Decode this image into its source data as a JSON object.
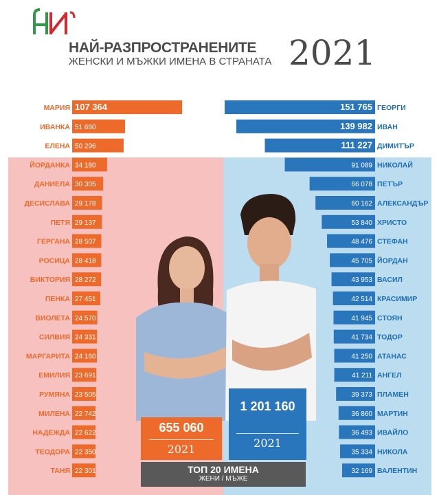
{
  "header": {
    "title_line1": "НАЙ-РАЗПРОСТРАНЕНИТЕ",
    "title_line2": "ЖЕНСКИ И МЪЖКИ ИМЕНА В СТРАНАТА",
    "year": "2021"
  },
  "totals": {
    "female": {
      "value": "655 060",
      "year": "2021"
    },
    "male": {
      "value": "1 201 160",
      "year": "2021"
    }
  },
  "footer": {
    "title": "ТОП 20 ИМЕНА",
    "subtitle": "ЖЕНИ / МЪЖЕ"
  },
  "colors": {
    "female_bar": "#ee6a2a",
    "male_bar": "#2a76bd",
    "female_bg": "#f6c1bf",
    "male_bg": "#bcdcef"
  },
  "chart_data": {
    "type": "bar",
    "female": [
      {
        "name": "МАРИЯ",
        "value": 107364,
        "label": "107 364"
      },
      {
        "name": "ИВАНКА",
        "value": 51680,
        "label": "51 680"
      },
      {
        "name": "ЕЛЕНА",
        "value": 50296,
        "label": "50 296"
      },
      {
        "name": "ЙОРДАНКА",
        "value": 34180,
        "label": "34 180"
      },
      {
        "name": "ДАНИЕЛА",
        "value": 30305,
        "label": "30 305"
      },
      {
        "name": "ДЕСИСЛАВА",
        "value": 29178,
        "label": "29 178"
      },
      {
        "name": "ПЕТЯ",
        "value": 29137,
        "label": "29 137"
      },
      {
        "name": "ГЕРГАНА",
        "value": 28507,
        "label": "28 507"
      },
      {
        "name": "РОСИЦА",
        "value": 28418,
        "label": "28 418"
      },
      {
        "name": "ВИКТОРИЯ",
        "value": 28272,
        "label": "28 272"
      },
      {
        "name": "ПЕНКА",
        "value": 27451,
        "label": "27 451"
      },
      {
        "name": "ВИОЛЕТА",
        "value": 24570,
        "label": "24 570"
      },
      {
        "name": "СИЛВИЯ",
        "value": 24331,
        "label": "24 331"
      },
      {
        "name": "МАРГАРИТА",
        "value": 24160,
        "label": "24 160"
      },
      {
        "name": "ЕМИЛИЯ",
        "value": 23691,
        "label": "23 691"
      },
      {
        "name": "РУМЯНА",
        "value": 23505,
        "label": "23 505"
      },
      {
        "name": "МИЛЕНА",
        "value": 22742,
        "label": "22 742"
      },
      {
        "name": "НАДЕЖДА",
        "value": 22622,
        "label": "22 622"
      },
      {
        "name": "ТЕОДОРА",
        "value": 22350,
        "label": "22 350"
      },
      {
        "name": "ТАНЯ",
        "value": 22301,
        "label": "22 301"
      }
    ],
    "male": [
      {
        "name": "ГЕОРГИ",
        "value": 151765,
        "label": "151 765"
      },
      {
        "name": "ИВАН",
        "value": 139982,
        "label": "139 982"
      },
      {
        "name": "ДИМИТЪР",
        "value": 111227,
        "label": "111 227"
      },
      {
        "name": "НИКОЛАЙ",
        "value": 91089,
        "label": "91 089"
      },
      {
        "name": "ПЕТЪР",
        "value": 66078,
        "label": "66 078"
      },
      {
        "name": "АЛЕКСАНДЪР",
        "value": 60162,
        "label": "60 162"
      },
      {
        "name": "ХРИСТО",
        "value": 53840,
        "label": "53 840"
      },
      {
        "name": "СТЕФАН",
        "value": 48476,
        "label": "48 476"
      },
      {
        "name": "ЙОРДАН",
        "value": 45705,
        "label": "45 705"
      },
      {
        "name": "ВАСИЛ",
        "value": 43953,
        "label": "43 953"
      },
      {
        "name": "КРАСИМИР",
        "value": 42514,
        "label": "42 514"
      },
      {
        "name": "СТОЯН",
        "value": 41945,
        "label": "41 945"
      },
      {
        "name": "ТОДОР",
        "value": 41734,
        "label": "41 734"
      },
      {
        "name": "АТАНАС",
        "value": 41250,
        "label": "41 250"
      },
      {
        "name": "АНГЕЛ",
        "value": 41211,
        "label": "41 211"
      },
      {
        "name": "ПЛАМЕН",
        "value": 39373,
        "label": "39 373"
      },
      {
        "name": "МАРТИН",
        "value": 36860,
        "label": "36 860"
      },
      {
        "name": "ИВАЙЛО",
        "value": 36493,
        "label": "36 493"
      },
      {
        "name": "НИКОЛА",
        "value": 35334,
        "label": "35 334"
      },
      {
        "name": "ВАЛЕНТИН",
        "value": 32169,
        "label": "32 169"
      }
    ]
  }
}
